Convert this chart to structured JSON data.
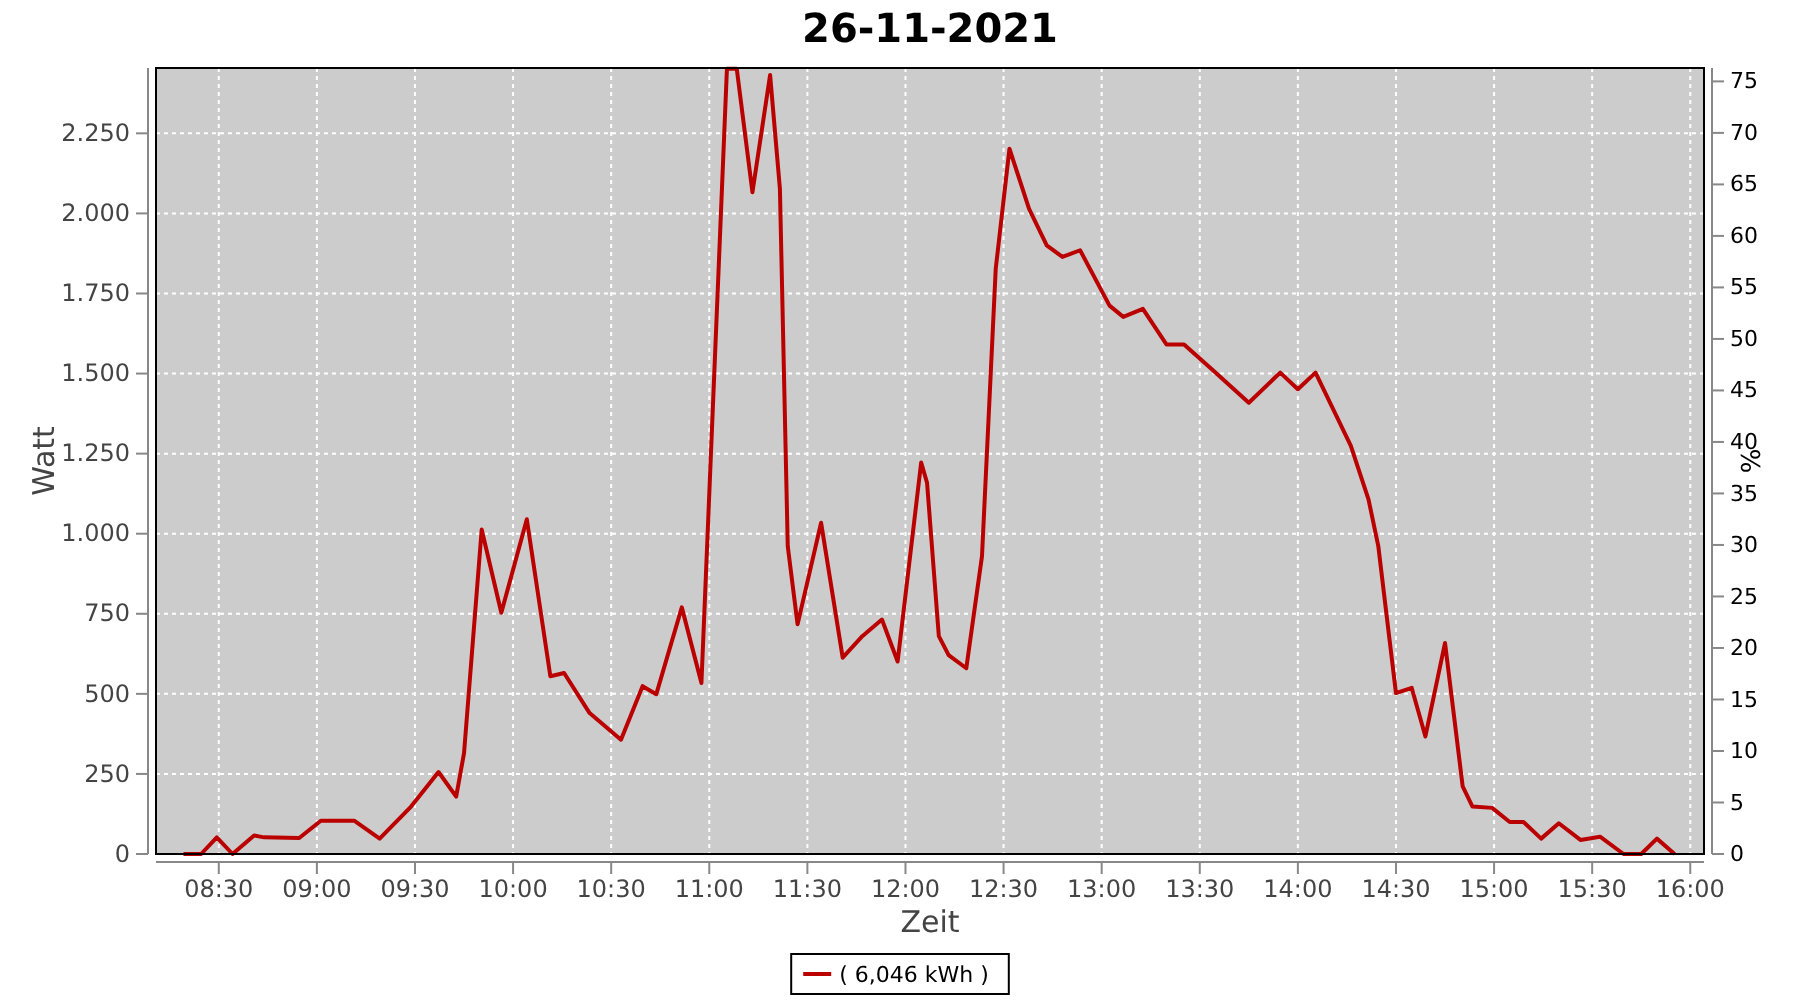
{
  "chart_data": {
    "type": "line",
    "title": "26-11-2021",
    "xlabel": "Zeit",
    "ylabel": "Watt",
    "y2label": "%",
    "xlim": [
      8.18,
      16.07
    ],
    "xticks": [
      {
        "value": 8.5,
        "label": "08:30"
      },
      {
        "value": 9,
        "label": "09:00"
      },
      {
        "value": 9.5,
        "label": "09:30"
      },
      {
        "value": 10,
        "label": "10:00"
      },
      {
        "value": 10.5,
        "label": "10:30"
      },
      {
        "value": 11,
        "label": "11:00"
      },
      {
        "value": 11.5,
        "label": "11:30"
      },
      {
        "value": 12,
        "label": "12:00"
      },
      {
        "value": 12.5,
        "label": "12:30"
      },
      {
        "value": 13,
        "label": "13:00"
      },
      {
        "value": 13.5,
        "label": "13:30"
      },
      {
        "value": 14,
        "label": "14:00"
      },
      {
        "value": 14.5,
        "label": "14:30"
      },
      {
        "value": 15,
        "label": "15:00"
      },
      {
        "value": 15.5,
        "label": "15:30"
      },
      {
        "value": 16,
        "label": "16:00"
      }
    ],
    "ylim": [
      0,
      2454
    ],
    "yticks": [
      0,
      250,
      500,
      750,
      {
        "value": 1000,
        "label": "1.000"
      },
      {
        "value": 1250,
        "label": "1.250"
      },
      {
        "value": 1500,
        "label": "1.500"
      },
      {
        "value": 1750,
        "label": "1.750"
      },
      {
        "value": 2000,
        "label": "2.000"
      },
      {
        "value": 2250,
        "label": "2.250"
      }
    ],
    "y2lim": [
      0,
      76.3
    ],
    "y2ticks": [
      0,
      5,
      10,
      15,
      20,
      25,
      30,
      35,
      40,
      45,
      50,
      55,
      60,
      65,
      70,
      75
    ],
    "grid": true,
    "legend": "bottom",
    "marker": "none",
    "line_style": "solid",
    "series": [
      {
        "name": "( 6,046 kWh )",
        "color": "#bb0000",
        "x": [
          8.32,
          8.41,
          8.49,
          8.57,
          8.68,
          8.73,
          8.91,
          9.02,
          9.19,
          9.32,
          9.48,
          9.62,
          9.71,
          9.75,
          9.84,
          9.94,
          10.07,
          10.19,
          10.26,
          10.39,
          10.55,
          10.66,
          10.73,
          10.86,
          10.96,
          11.09,
          11.14,
          11.22,
          11.31,
          11.36,
          11.4,
          11.45,
          11.57,
          11.68,
          11.78,
          11.88,
          11.96,
          12.08,
          12.11,
          12.17,
          12.22,
          12.31,
          12.39,
          12.46,
          12.53,
          12.63,
          12.72,
          12.8,
          12.89,
          13.04,
          13.11,
          13.21,
          13.33,
          13.42,
          13.56,
          13.75,
          13.91,
          14.0,
          14.09,
          14.27,
          14.36,
          14.41,
          14.5,
          14.58,
          14.65,
          14.75,
          14.84,
          14.89,
          14.99,
          15.08,
          15.15,
          15.24,
          15.33,
          15.44,
          15.54,
          15.66,
          15.75,
          15.83,
          15.92
        ],
        "values": [
          0,
          0,
          52,
          0,
          58,
          52,
          50,
          104,
          104,
          48,
          148,
          256,
          179,
          315,
          1013,
          753,
          1045,
          555,
          565,
          440,
          357,
          524,
          499,
          770,
          534,
          2452,
          2452,
          2066,
          2432,
          2077,
          961,
          717,
          1034,
          613,
          680,
          732,
          601,
          1222,
          1159,
          680,
          621,
          580,
          930,
          1827,
          2202,
          2014,
          1900,
          1864,
          1885,
          1712,
          1677,
          1702,
          1591,
          1591,
          1514,
          1409,
          1503,
          1451,
          1503,
          1274,
          1107,
          961,
          502,
          519,
          367,
          659,
          211,
          148,
          144,
          100,
          100,
          48,
          96,
          44,
          54,
          0,
          0,
          48,
          0
        ]
      }
    ]
  }
}
